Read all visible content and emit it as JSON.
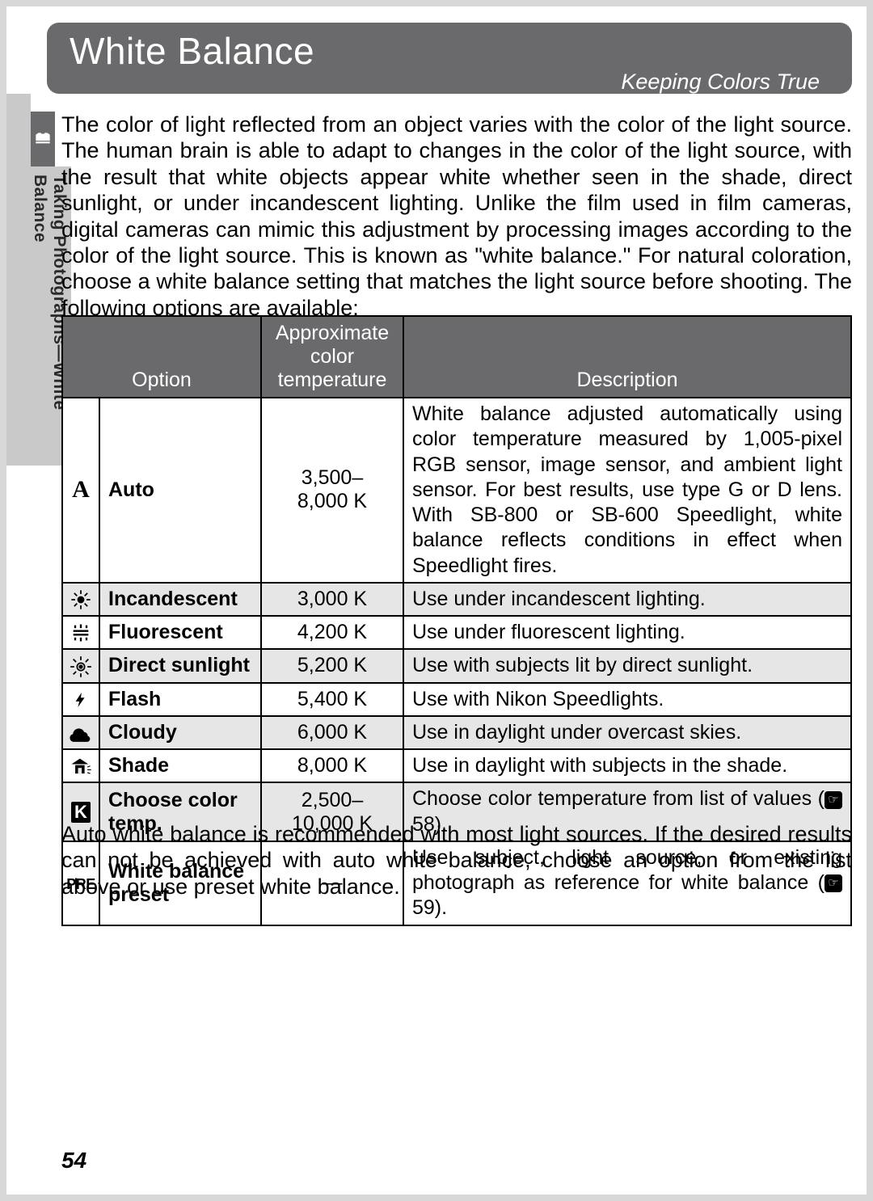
{
  "title": "White Balance",
  "subtitle": "Keeping Colors True",
  "side_label": "Taking Photographs—White Balance",
  "intro": "The color of light reflected from an object varies with the color of the light source.  The human brain is able to adapt to changes in the color of the light source, with the result that white objects appear white whether seen in the shade, direct sunlight, or under incandescent lighting.  Unlike the film used in film cameras, digital cameras can mimic this adjustment by processing images according to the color of the light source.  This is known as \"white balance.\" For natural coloration, choose a white balance setting that matches the light source before shooting.  The following options are available:",
  "table": {
    "headers": {
      "option": "Option",
      "temp": "Approximate color temperature",
      "desc": "Description"
    },
    "rows": [
      {
        "icon": "auto",
        "name": "Auto",
        "temp": "3,500–\n8,000 K",
        "desc": "White balance adjusted automatically using color temperature measured by 1,005-pixel RGB sensor, image sensor, and ambient light sensor.  For best results, use type G or D lens.  With SB-800 or SB-600 Speedlight, white balance reflects conditions in effect when Speedlight fires.",
        "shade": false,
        "justify": true
      },
      {
        "icon": "incandescent",
        "name": "Incandescent",
        "temp": "3,000 K",
        "desc": "Use under incandescent lighting.",
        "shade": true
      },
      {
        "icon": "fluorescent",
        "name": "Fluorescent",
        "temp": "4,200 K",
        "desc": "Use under fluorescent lighting.",
        "shade": false
      },
      {
        "icon": "sunlight",
        "name": "Direct sunlight",
        "temp": "5,200 K",
        "desc": "Use with subjects lit by direct sunlight.",
        "shade": true
      },
      {
        "icon": "flash",
        "name": "Flash",
        "temp": "5,400 K",
        "desc": "Use with Nikon Speedlights.",
        "shade": false
      },
      {
        "icon": "cloudy",
        "name": "Cloudy",
        "temp": "6,000 K",
        "desc": "Use in daylight under overcast skies.",
        "shade": true
      },
      {
        "icon": "shade",
        "name": "Shade",
        "temp": "8,000 K",
        "desc": "Use in daylight with subjects in the shade.",
        "shade": false
      },
      {
        "icon": "colortemp",
        "name": "Choose color temp.",
        "temp": "2,500–\n10,000 K",
        "desc": "Choose color temperature from list of values (",
        "ref": "58",
        "desc_after": ").",
        "shade": true,
        "justify": true
      },
      {
        "icon": "preset",
        "name": "White balance preset",
        "temp": "—",
        "desc": "Use subject, light source, or existing photograph as reference for white balance (",
        "ref": "59",
        "desc_after": ").",
        "shade": false,
        "justify": true
      }
    ]
  },
  "footer": "Auto white balance is recommended with most light sources.  If the desired results can not be achieved with auto white balance, choose an option from the list above or use preset white balance.",
  "page_number": "54",
  "colors": {
    "page_bg": "#d8d8d8",
    "header_bg": "#6a6a6c",
    "row_shade": "#e6e6e6",
    "border": "#000000"
  }
}
